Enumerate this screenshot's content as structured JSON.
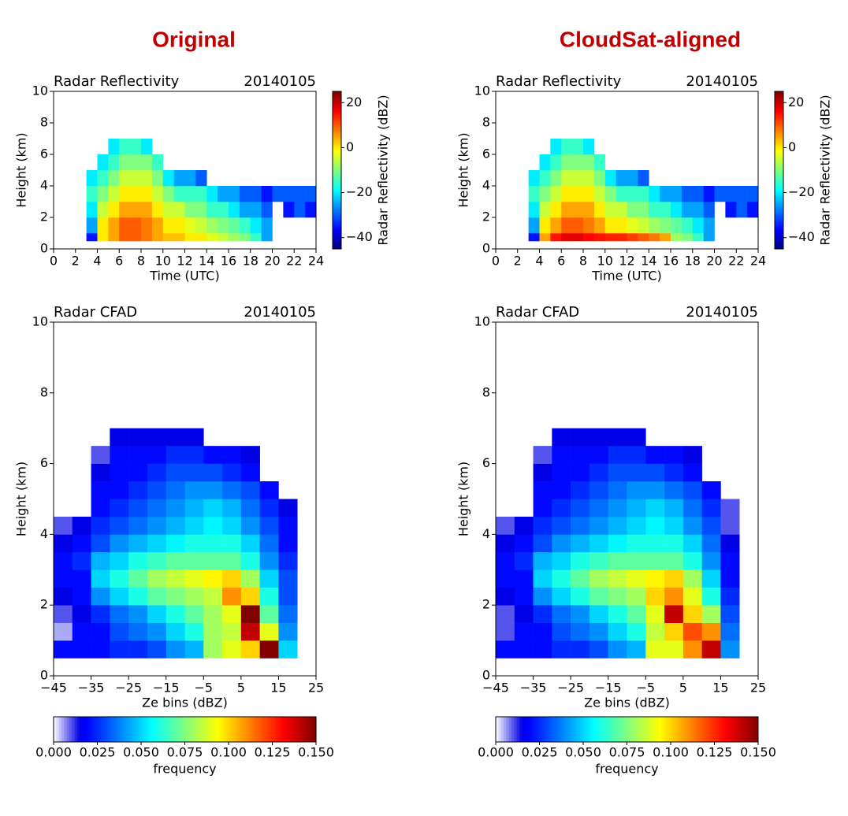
{
  "headers": [
    "Original",
    "CloudSat-aligned"
  ],
  "chart_data": [
    {
      "type": "heatmap",
      "title": "Radar Reflectivity",
      "annotation": "20140105",
      "xlabel": "Time (UTC)",
      "ylabel": "Height (km)",
      "xlim": [
        0,
        24
      ],
      "ylim": [
        0,
        10
      ],
      "xticks": [
        0,
        2,
        4,
        6,
        8,
        10,
        12,
        14,
        16,
        18,
        20,
        22,
        24
      ],
      "yticks": [
        0,
        2,
        4,
        6,
        8,
        10
      ],
      "x_edges": [
        3,
        4,
        5,
        6,
        7,
        8,
        9,
        10,
        11,
        12,
        13,
        14,
        15,
        16,
        17,
        18,
        19,
        20,
        21,
        22,
        23,
        24
      ],
      "y_edges": [
        0.5,
        1,
        2,
        3,
        4,
        5,
        6,
        7
      ],
      "z": [
        [
          -35,
          -25,
          -20,
          -15,
          -20,
          null,
          null
        ],
        [
          0,
          0,
          -5,
          -10,
          -15,
          -20,
          null
        ],
        [
          5,
          5,
          0,
          -5,
          -10,
          -15,
          -20
        ],
        [
          10,
          10,
          5,
          0,
          -5,
          -10,
          -15
        ],
        [
          10,
          10,
          5,
          0,
          -5,
          -10,
          -15
        ],
        [
          8,
          8,
          5,
          0,
          -5,
          -10,
          -20
        ],
        [
          5,
          5,
          0,
          -5,
          -10,
          -15,
          null
        ],
        [
          3,
          0,
          -5,
          -10,
          -20,
          null,
          null
        ],
        [
          3,
          0,
          -5,
          -15,
          -25,
          null,
          null
        ],
        [
          0,
          -3,
          -10,
          -15,
          -25,
          null,
          null
        ],
        [
          0,
          -5,
          -10,
          -15,
          -30,
          null,
          null
        ],
        [
          -3,
          -8,
          -15,
          -20,
          null,
          null,
          null
        ],
        [
          -5,
          -10,
          -15,
          -25,
          null,
          null,
          null
        ],
        [
          -8,
          -12,
          -20,
          -25,
          null,
          null,
          null
        ],
        [
          -10,
          -15,
          -25,
          -30,
          null,
          null,
          null
        ],
        [
          -15,
          -20,
          -25,
          -30,
          null,
          null,
          null
        ],
        [
          -25,
          -25,
          -30,
          -35,
          null,
          null,
          null
        ],
        [
          null,
          null,
          null,
          -30,
          null,
          null,
          null
        ],
        [
          null,
          null,
          -35,
          -30,
          null,
          null,
          null
        ],
        [
          null,
          null,
          -30,
          -30,
          null,
          null,
          null
        ],
        [
          null,
          null,
          -35,
          -30,
          null,
          null,
          null
        ]
      ],
      "clim": [
        -45,
        25
      ],
      "colormap": "jet",
      "colorbar": {
        "orientation": "vertical",
        "label": "Radar Reflectivity (dBZ)",
        "ticks": [
          {
            "value": -40,
            "label": "−40"
          },
          {
            "value": -20,
            "label": "−20"
          },
          0,
          20
        ]
      }
    },
    {
      "type": "heatmap",
      "title": "Radar Reflectivity",
      "annotation": "20140105",
      "xlabel": "Time (UTC)",
      "ylabel": "Height (km)",
      "xlim": [
        0,
        24
      ],
      "ylim": [
        0,
        10
      ],
      "xticks": [
        0,
        2,
        4,
        6,
        8,
        10,
        12,
        14,
        16,
        18,
        20,
        22,
        24
      ],
      "yticks": [
        0,
        2,
        4,
        6,
        8,
        10
      ],
      "x_edges": [
        3,
        4,
        5,
        6,
        7,
        8,
        9,
        10,
        11,
        12,
        13,
        14,
        15,
        16,
        17,
        18,
        19,
        20,
        21,
        22,
        23,
        24
      ],
      "y_edges": [
        0.5,
        1,
        2,
        3,
        4,
        5,
        6,
        7
      ],
      "z": [
        [
          -35,
          -25,
          -20,
          -15,
          -20,
          null,
          null
        ],
        [
          5,
          0,
          -5,
          -10,
          -15,
          -20,
          null
        ],
        [
          15,
          5,
          0,
          -5,
          -10,
          -15,
          -20
        ],
        [
          18,
          10,
          5,
          0,
          -5,
          -10,
          -15
        ],
        [
          18,
          10,
          5,
          0,
          -5,
          -10,
          -15
        ],
        [
          16,
          8,
          5,
          0,
          -5,
          -10,
          -20
        ],
        [
          15,
          5,
          0,
          -5,
          -10,
          -15,
          null
        ],
        [
          14,
          0,
          -5,
          -10,
          -20,
          null,
          null
        ],
        [
          14,
          0,
          -5,
          -15,
          -25,
          null,
          null
        ],
        [
          12,
          -3,
          -10,
          -15,
          -25,
          null,
          null
        ],
        [
          10,
          -5,
          -10,
          -15,
          -30,
          null,
          null
        ],
        [
          8,
          -8,
          -15,
          -20,
          null,
          null,
          null
        ],
        [
          5,
          -10,
          -15,
          -25,
          null,
          null,
          null
        ],
        [
          -8,
          -12,
          -20,
          -25,
          null,
          null,
          null
        ],
        [
          -10,
          -15,
          -25,
          -30,
          null,
          null,
          null
        ],
        [
          -15,
          -20,
          -25,
          -30,
          null,
          null,
          null
        ],
        [
          -25,
          -25,
          -30,
          -35,
          null,
          null,
          null
        ],
        [
          null,
          null,
          null,
          -30,
          null,
          null,
          null
        ],
        [
          null,
          null,
          -35,
          -30,
          null,
          null,
          null
        ],
        [
          null,
          null,
          -30,
          -30,
          null,
          null,
          null
        ],
        [
          null,
          null,
          -35,
          -30,
          null,
          null,
          null
        ]
      ],
      "clim": [
        -45,
        25
      ],
      "colormap": "jet",
      "colorbar": {
        "orientation": "vertical",
        "label": "Radar Reflectivity (dBZ)",
        "ticks": [
          {
            "value": -40,
            "label": "−40"
          },
          {
            "value": -20,
            "label": "−20"
          },
          0,
          20
        ]
      }
    },
    {
      "type": "heatmap",
      "title": "Radar CFAD",
      "annotation": "20140105",
      "xlabel": "Ze bins (dBZ)",
      "ylabel": "Height (km)",
      "xlim": [
        -45,
        25
      ],
      "ylim": [
        0,
        10
      ],
      "xticks": [
        {
          "value": -45,
          "label": "−45"
        },
        {
          "value": -35,
          "label": "−35"
        },
        {
          "value": -25,
          "label": "−25"
        },
        {
          "value": -15,
          "label": "−15"
        },
        {
          "value": -5,
          "label": "−5"
        },
        5,
        15,
        25
      ],
      "yticks": [
        0,
        2,
        4,
        6,
        8,
        10
      ],
      "x_edges": [
        -45,
        -40,
        -35,
        -30,
        -25,
        -20,
        -15,
        -10,
        -5,
        0,
        5,
        10,
        15,
        20,
        25
      ],
      "y_edges": [
        0.5,
        1,
        1.5,
        2,
        2.5,
        3,
        3.5,
        4,
        4.5,
        5,
        5.5,
        6,
        6.5,
        7
      ],
      "z": [
        [
          0.02,
          0.005,
          0.01,
          0.015,
          0.02,
          0.02,
          0.015,
          0.01,
          null,
          null,
          null,
          null,
          null
        ],
        [
          0.02,
          0.02,
          0.015,
          0.02,
          0.02,
          0.025,
          0.02,
          0.015,
          null,
          null,
          null,
          null,
          null
        ],
        [
          0.02,
          0.02,
          0.025,
          0.04,
          0.05,
          0.045,
          0.03,
          0.025,
          0.02,
          0.02,
          0.015,
          0.01,
          null
        ],
        [
          0.025,
          0.03,
          0.035,
          0.05,
          0.06,
          0.05,
          0.04,
          0.03,
          0.025,
          0.02,
          0.02,
          0.02,
          0.015
        ],
        [
          0.025,
          0.035,
          0.04,
          0.06,
          0.07,
          0.06,
          0.045,
          0.035,
          0.03,
          0.025,
          0.02,
          0.02,
          0.015
        ],
        [
          0.03,
          0.04,
          0.05,
          0.07,
          0.08,
          0.065,
          0.05,
          0.04,
          0.035,
          0.03,
          0.025,
          0.02,
          0.015
        ],
        [
          0.04,
          0.05,
          0.06,
          0.075,
          0.085,
          0.07,
          0.055,
          0.045,
          0.04,
          0.035,
          0.03,
          0.025,
          0.015
        ],
        [
          0.045,
          0.06,
          0.07,
          0.08,
          0.09,
          0.07,
          0.06,
          0.05,
          0.045,
          0.04,
          0.03,
          0.025,
          0.015
        ],
        [
          0.08,
          0.08,
          0.08,
          0.085,
          0.095,
          0.07,
          0.06,
          0.055,
          0.05,
          0.04,
          0.03,
          0.02,
          null
        ],
        [
          0.09,
          0.085,
          0.09,
          0.11,
          0.1,
          0.07,
          0.06,
          0.05,
          0.045,
          0.035,
          0.025,
          0.02,
          null
        ],
        [
          0.1,
          0.14,
          0.15,
          0.1,
          0.08,
          0.06,
          0.05,
          0.04,
          0.035,
          0.03,
          0.02,
          0.015,
          null
        ],
        [
          0.15,
          0.09,
          0.07,
          0.06,
          0.05,
          0.04,
          0.035,
          0.03,
          0.025,
          0.02,
          null,
          null,
          null
        ],
        [
          0.05,
          0.04,
          0.035,
          0.03,
          0.03,
          0.025,
          0.02,
          0.02,
          0.015,
          null,
          null,
          null,
          null
        ],
        [
          null,
          null,
          null,
          null,
          null,
          null,
          null,
          null,
          null,
          null,
          null,
          null,
          null
        ]
      ],
      "clim": [
        0,
        0.15
      ],
      "colormap": "white-jet",
      "colorbar": {
        "orientation": "horizontal",
        "label": "frequency",
        "ticks": [
          {
            "value": 0,
            "label": "0.000"
          },
          {
            "value": 0.025,
            "label": "0.025"
          },
          {
            "value": 0.05,
            "label": "0.050"
          },
          {
            "value": 0.075,
            "label": "0.075"
          },
          {
            "value": 0.1,
            "label": "0.100"
          },
          {
            "value": 0.125,
            "label": "0.125"
          },
          {
            "value": 0.15,
            "label": "0.150"
          }
        ]
      }
    },
    {
      "type": "heatmap",
      "title": "Radar CFAD",
      "annotation": "20140105",
      "xlabel": "Ze bins (dBZ)",
      "ylabel": "Height (km)",
      "xlim": [
        -45,
        25
      ],
      "ylim": [
        0,
        10
      ],
      "xticks": [
        {
          "value": -45,
          "label": "−45"
        },
        {
          "value": -35,
          "label": "−35"
        },
        {
          "value": -25,
          "label": "−25"
        },
        {
          "value": -15,
          "label": "−15"
        },
        {
          "value": -5,
          "label": "−5"
        },
        5,
        15,
        25
      ],
      "yticks": [
        0,
        2,
        4,
        6,
        8,
        10
      ],
      "x_edges": [
        -45,
        -40,
        -35,
        -30,
        -25,
        -20,
        -15,
        -10,
        -5,
        0,
        5,
        10,
        15,
        20,
        25
      ],
      "y_edges": [
        0.5,
        1,
        1.5,
        2,
        2.5,
        3,
        3.5,
        4,
        4.5,
        5,
        5.5,
        6,
        6.5,
        7
      ],
      "z": [
        [
          0.02,
          0.01,
          0.01,
          0.015,
          0.02,
          0.02,
          0.015,
          0.01,
          null,
          null,
          null,
          null,
          null
        ],
        [
          0.02,
          0.02,
          0.015,
          0.02,
          0.02,
          0.025,
          0.02,
          0.015,
          null,
          null,
          null,
          null,
          null
        ],
        [
          0.02,
          0.02,
          0.025,
          0.04,
          0.05,
          0.045,
          0.03,
          0.025,
          0.02,
          0.02,
          0.015,
          0.01,
          null
        ],
        [
          0.025,
          0.03,
          0.035,
          0.05,
          0.06,
          0.05,
          0.04,
          0.03,
          0.025,
          0.02,
          0.02,
          0.02,
          0.015
        ],
        [
          0.025,
          0.035,
          0.04,
          0.06,
          0.07,
          0.06,
          0.045,
          0.035,
          0.03,
          0.025,
          0.02,
          0.02,
          0.015
        ],
        [
          0.03,
          0.04,
          0.05,
          0.07,
          0.08,
          0.065,
          0.05,
          0.04,
          0.035,
          0.03,
          0.025,
          0.02,
          0.015
        ],
        [
          0.04,
          0.05,
          0.06,
          0.075,
          0.085,
          0.07,
          0.055,
          0.045,
          0.04,
          0.035,
          0.03,
          0.025,
          0.015
        ],
        [
          0.045,
          0.06,
          0.07,
          0.08,
          0.09,
          0.07,
          0.06,
          0.05,
          0.045,
          0.04,
          0.03,
          0.025,
          0.015
        ],
        [
          0.09,
          0.085,
          0.09,
          0.1,
          0.095,
          0.07,
          0.06,
          0.055,
          0.05,
          0.04,
          0.03,
          0.02,
          null
        ],
        [
          0.09,
          0.1,
          0.14,
          0.11,
          0.1,
          0.07,
          0.06,
          0.05,
          0.045,
          0.035,
          0.025,
          0.02,
          null
        ],
        [
          0.11,
          0.12,
          0.1,
          0.09,
          0.08,
          0.06,
          0.05,
          0.04,
          0.035,
          0.03,
          0.02,
          0.015,
          null
        ],
        [
          0.14,
          0.11,
          0.08,
          0.06,
          0.05,
          0.04,
          0.035,
          0.03,
          0.025,
          0.02,
          null,
          null,
          null
        ],
        [
          0.04,
          0.035,
          0.03,
          0.025,
          0.02,
          0.02,
          0.015,
          0.01,
          0.01,
          null,
          null,
          null,
          null
        ],
        [
          null,
          null,
          null,
          null,
          null,
          null,
          null,
          null,
          null,
          null,
          null,
          null,
          null
        ]
      ],
      "clim": [
        0,
        0.15
      ],
      "colormap": "white-jet",
      "colorbar": {
        "orientation": "horizontal",
        "label": "frequency",
        "ticks": [
          {
            "value": 0,
            "label": "0.000"
          },
          {
            "value": 0.025,
            "label": "0.025"
          },
          {
            "value": 0.05,
            "label": "0.050"
          },
          {
            "value": 0.075,
            "label": "0.075"
          },
          {
            "value": 0.1,
            "label": "0.100"
          },
          {
            "value": 0.125,
            "label": "0.125"
          },
          {
            "value": 0.15,
            "label": "0.150"
          }
        ]
      }
    }
  ]
}
